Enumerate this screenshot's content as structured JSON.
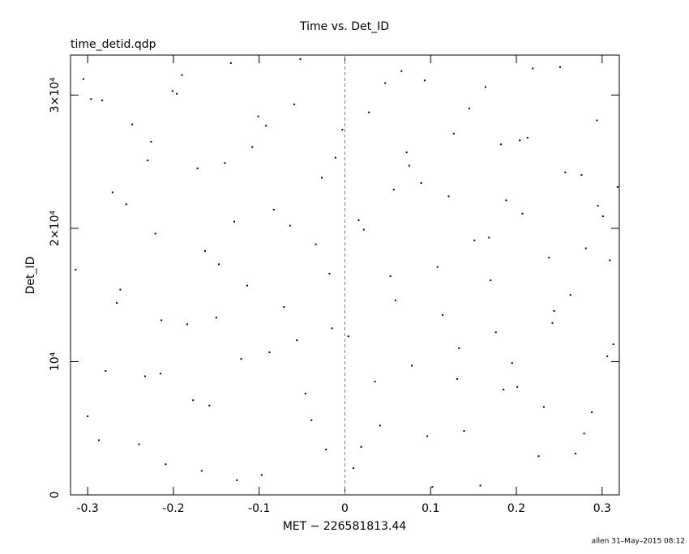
{
  "chart_data": {
    "type": "scatter",
    "title": "Time vs. Det_ID",
    "subtitle": "time_detid.qdp",
    "x_label": "MET − 226581813.44",
    "y_label": "Det_ID",
    "footer": "allen 31–May–2015 08:12",
    "color": "#000000",
    "xlim": [
      -0.32,
      0.32
    ],
    "xticks": [
      -0.3,
      -0.2,
      -0.1,
      0,
      0.1,
      0.2,
      0.3
    ],
    "ylim": [
      0,
      33000
    ],
    "yticks": [
      0,
      {
        "value": 10000,
        "label": "10⁴"
      },
      {
        "value": 20000,
        "label": "2×10⁴"
      },
      {
        "value": 30000,
        "label": "3×10⁴"
      }
    ],
    "reference_x": 0,
    "reference_color": "#2a9fbf",
    "x": [
      -0.305,
      -0.287,
      -0.271,
      -0.262,
      -0.248,
      -0.233,
      -0.221,
      -0.209,
      -0.196,
      -0.184,
      -0.172,
      -0.158,
      -0.147,
      -0.133,
      -0.121,
      -0.108,
      -0.097,
      -0.083,
      -0.071,
      -0.059,
      -0.046,
      -0.034,
      -0.022,
      -0.011,
      0.004,
      0.016,
      0.028,
      0.041,
      0.053,
      0.066,
      0.078,
      0.089,
      0.102,
      0.114,
      0.127,
      0.139,
      0.151,
      0.164,
      0.176,
      0.188,
      0.201,
      0.213,
      0.226,
      0.238,
      0.251,
      0.263,
      0.276,
      0.288,
      0.301,
      0.313,
      -0.314,
      -0.296,
      -0.279,
      -0.255,
      -0.24,
      -0.226,
      -0.214,
      -0.19,
      -0.177,
      -0.163,
      -0.14,
      -0.126,
      -0.114,
      -0.101,
      -0.088,
      -0.064,
      -0.052,
      -0.039,
      -0.027,
      -0.015,
      -0.003,
      0.01,
      0.022,
      0.035,
      0.047,
      0.059,
      0.072,
      0.096,
      0.108,
      0.121,
      0.133,
      0.145,
      0.158,
      0.17,
      0.182,
      0.195,
      0.207,
      0.219,
      0.232,
      0.244,
      0.257,
      0.269,
      0.281,
      0.294,
      0.306,
      0.318,
      -0.3,
      -0.266,
      -0.23,
      -0.201,
      -0.167,
      -0.129,
      -0.092,
      -0.056,
      -0.018,
      0.019,
      0.057,
      0.093,
      0.131,
      0.168,
      0.204,
      0.242,
      0.279,
      0.309,
      -0.283,
      -0.215,
      -0.15,
      0.075,
      0.185,
      0.295
    ],
    "values": [
      31200,
      4100,
      22700,
      15400,
      27800,
      8900,
      19600,
      2300,
      30100,
      12800,
      24500,
      6700,
      17300,
      32400,
      10200,
      26100,
      1500,
      21400,
      14100,
      29300,
      7600,
      18800,
      3400,
      25300,
      11900,
      20600,
      28700,
      5200,
      16400,
      31800,
      9700,
      23400,
      600,
      13500,
      27100,
      4800,
      19100,
      30600,
      12200,
      22100,
      8100,
      26800,
      2900,
      17800,
      32100,
      15000,
      24000,
      6200,
      20900,
      11300,
      16900,
      29700,
      9300,
      21800,
      3800,
      26500,
      13100,
      31500,
      7100,
      18300,
      24900,
      1100,
      15700,
      28400,
      10700,
      20200,
      32700,
      5600,
      23800,
      12500,
      27400,
      2000,
      19900,
      8500,
      30900,
      14600,
      25700,
      4400,
      17100,
      22400,
      11000,
      29000,
      700,
      16100,
      26300,
      9900,
      21100,
      32000,
      6600,
      13800,
      24200,
      3100,
      18500,
      28100,
      10400,
      23100,
      5900,
      14400,
      25100,
      30300,
      1800,
      20500,
      27700,
      11600,
      16600,
      3600,
      22900,
      31100,
      8700,
      19300,
      26600,
      12900,
      4600,
      17600,
      29600,
      9100,
      13300,
      24700,
      7900,
      21700
    ]
  }
}
